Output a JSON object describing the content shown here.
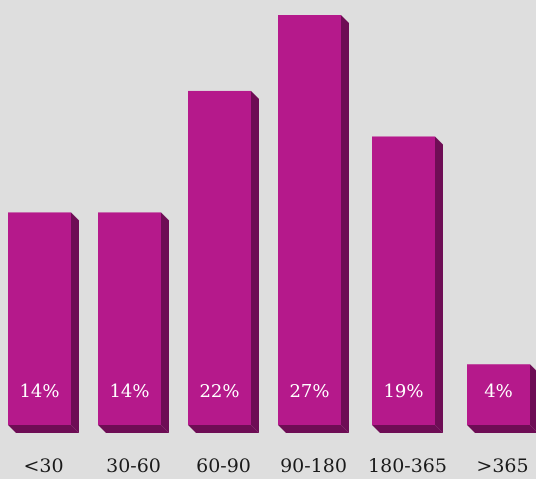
{
  "chart_data": {
    "type": "bar",
    "categories": [
      "<30",
      "30-60",
      "60-90",
      "90-180",
      "180-365",
      ">365"
    ],
    "values": [
      14,
      14,
      22,
      27,
      19,
      4
    ],
    "value_labels": [
      "14%",
      "14%",
      "22%",
      "27%",
      "19%",
      "4%"
    ],
    "unit": "%",
    "ylim": [
      0,
      27
    ],
    "grid": false,
    "legend": "none",
    "colors": {
      "bar_front": "#b5198b",
      "bar_side": "#6e0d55",
      "bar_top": "#8f1570",
      "background": "#dedede",
      "value_text": "#ffffff",
      "tick_text": "#1a1a1a"
    }
  }
}
